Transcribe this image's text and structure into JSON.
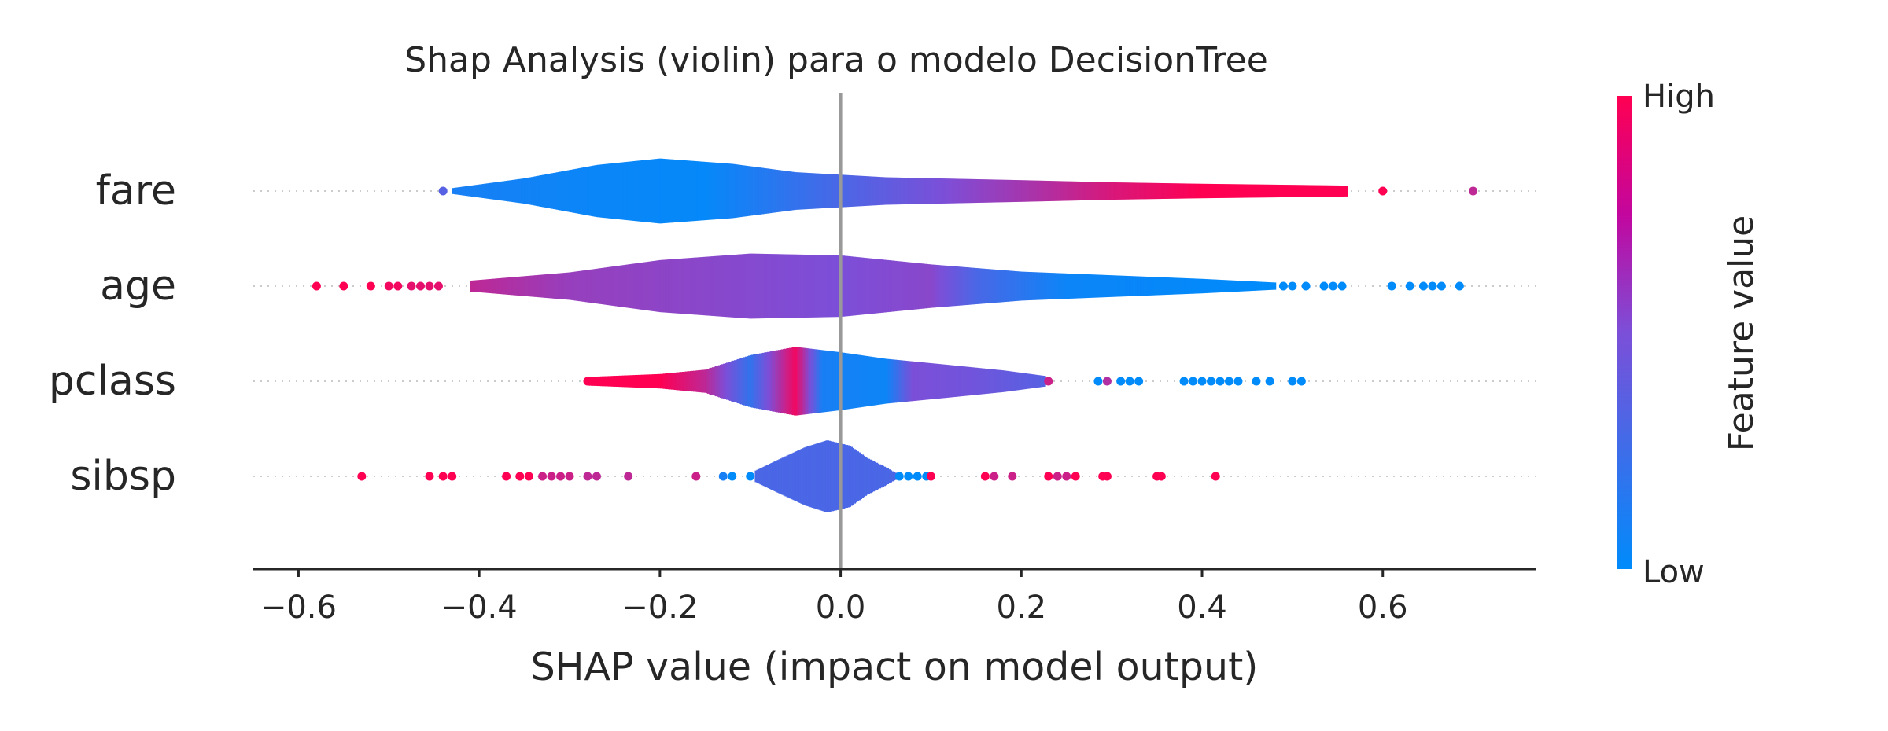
{
  "chart_data": {
    "type": "violin",
    "title": "Shap Analysis (violin) para o modelo DecisionTree",
    "xlabel": "SHAP value (impact on model output)",
    "xlim": [
      -0.65,
      0.77
    ],
    "xticks": [
      -0.6,
      -0.4,
      -0.2,
      0.0,
      0.2,
      0.4,
      0.6
    ],
    "xtick_labels": [
      "−0.6",
      "−0.4",
      "−0.2",
      "0.0",
      "0.2",
      "0.4",
      "0.6"
    ],
    "grid": false,
    "colorbar": {
      "label": "Feature value",
      "high": "High",
      "low": "Low"
    },
    "colors": {
      "low": "#008bfb",
      "mid": "#7c4fd8",
      "high": "#ff0052",
      "zero_line": "#999999",
      "axis": "#262626"
    },
    "features": [
      {
        "name": "fare",
        "range": [
          -0.43,
          0.56
        ],
        "width": [
          [
            -0.43,
            0.08
          ],
          [
            -0.35,
            0.35
          ],
          [
            -0.27,
            0.72
          ],
          [
            -0.2,
            0.9
          ],
          [
            -0.12,
            0.75
          ],
          [
            -0.05,
            0.52
          ],
          [
            0.05,
            0.38
          ],
          [
            0.2,
            0.3
          ],
          [
            0.3,
            0.24
          ],
          [
            0.4,
            0.2
          ],
          [
            0.5,
            0.17
          ],
          [
            0.56,
            0.15
          ]
        ],
        "color": [
          [
            -0.43,
            0.1
          ],
          [
            -0.3,
            0.05
          ],
          [
            -0.15,
            0.02
          ],
          [
            0.0,
            0.3
          ],
          [
            0.2,
            0.65
          ],
          [
            0.3,
            0.85
          ],
          [
            0.4,
            1.0
          ],
          [
            0.56,
            1.0
          ]
        ],
        "outliers": [
          [
            -0.44,
            0.35
          ],
          [
            0.6,
            1.0
          ],
          [
            0.7,
            0.75
          ]
        ]
      },
      {
        "name": "age",
        "range": [
          -0.41,
          0.48
        ],
        "width": [
          [
            -0.41,
            0.15
          ],
          [
            -0.3,
            0.38
          ],
          [
            -0.2,
            0.72
          ],
          [
            -0.1,
            0.9
          ],
          [
            0.0,
            0.85
          ],
          [
            0.1,
            0.6
          ],
          [
            0.2,
            0.4
          ],
          [
            0.3,
            0.3
          ],
          [
            0.4,
            0.2
          ],
          [
            0.48,
            0.1
          ]
        ],
        "color": [
          [
            -0.41,
            0.75
          ],
          [
            -0.3,
            0.6
          ],
          [
            -0.15,
            0.55
          ],
          [
            0.0,
            0.5
          ],
          [
            0.1,
            0.55
          ],
          [
            0.15,
            0.3
          ],
          [
            0.25,
            0.05
          ],
          [
            0.48,
            0.0
          ]
        ],
        "outliers": [
          [
            -0.58,
            1.0
          ],
          [
            -0.55,
            1.0
          ],
          [
            -0.52,
            1.0
          ],
          [
            -0.5,
            0.95
          ],
          [
            -0.49,
            0.95
          ],
          [
            -0.475,
            0.9
          ],
          [
            -0.465,
            0.9
          ],
          [
            -0.455,
            0.9
          ],
          [
            -0.445,
            0.9
          ],
          [
            0.49,
            0.0
          ],
          [
            0.5,
            0.0
          ],
          [
            0.515,
            0.0
          ],
          [
            0.535,
            0.0
          ],
          [
            0.545,
            0.0
          ],
          [
            0.555,
            0.0
          ],
          [
            0.61,
            0.0
          ],
          [
            0.63,
            0.0
          ],
          [
            0.645,
            0.0
          ],
          [
            0.655,
            0.0
          ],
          [
            0.665,
            0.0
          ],
          [
            0.685,
            0.0
          ]
        ]
      },
      {
        "name": "pclass",
        "range": [
          -0.28,
          0.225
        ],
        "width": [
          [
            -0.28,
            0.12
          ],
          [
            -0.2,
            0.2
          ],
          [
            -0.15,
            0.32
          ],
          [
            -0.1,
            0.72
          ],
          [
            -0.05,
            0.95
          ],
          [
            0.0,
            0.8
          ],
          [
            0.05,
            0.62
          ],
          [
            0.12,
            0.45
          ],
          [
            0.18,
            0.3
          ],
          [
            0.225,
            0.15
          ]
        ],
        "color": [
          [
            -0.28,
            1.0
          ],
          [
            -0.2,
            1.0
          ],
          [
            -0.15,
            0.75
          ],
          [
            -0.1,
            0.2
          ],
          [
            -0.05,
            0.95
          ],
          [
            -0.02,
            0.1
          ],
          [
            0.05,
            0.05
          ],
          [
            0.08,
            0.5
          ],
          [
            0.15,
            0.45
          ],
          [
            0.225,
            0.35
          ]
        ],
        "outliers": [
          [
            -0.28,
            1.0
          ],
          [
            -0.275,
            1.0
          ],
          [
            0.23,
            0.8
          ],
          [
            0.285,
            0.0
          ],
          [
            0.295,
            0.7
          ],
          [
            0.31,
            0.0
          ],
          [
            0.32,
            0.0
          ],
          [
            0.33,
            0.0
          ],
          [
            0.38,
            0.0
          ],
          [
            0.39,
            0.0
          ],
          [
            0.4,
            0.0
          ],
          [
            0.41,
            0.0
          ],
          [
            0.42,
            0.0
          ],
          [
            0.43,
            0.0
          ],
          [
            0.44,
            0.0
          ],
          [
            0.46,
            0.0
          ],
          [
            0.475,
            0.0
          ],
          [
            0.5,
            0.0
          ],
          [
            0.51,
            0.0
          ]
        ]
      },
      {
        "name": "sibsp",
        "range": [
          -0.095,
          0.06
        ],
        "width": [
          [
            -0.095,
            0.15
          ],
          [
            -0.07,
            0.45
          ],
          [
            -0.04,
            0.8
          ],
          [
            -0.015,
            1.0
          ],
          [
            0.01,
            0.85
          ],
          [
            0.03,
            0.5
          ],
          [
            0.05,
            0.25
          ],
          [
            0.06,
            0.1
          ]
        ],
        "color": [
          [
            -0.095,
            0.3
          ],
          [
            0.0,
            0.3
          ],
          [
            0.06,
            0.3
          ]
        ],
        "outliers": [
          [
            -0.53,
            1.0
          ],
          [
            -0.455,
            1.0
          ],
          [
            -0.44,
            1.0
          ],
          [
            -0.43,
            1.0
          ],
          [
            -0.37,
            1.0
          ],
          [
            -0.355,
            1.0
          ],
          [
            -0.345,
            1.0
          ],
          [
            -0.33,
            0.8
          ],
          [
            -0.32,
            0.8
          ],
          [
            -0.31,
            0.8
          ],
          [
            -0.3,
            0.8
          ],
          [
            -0.28,
            0.75
          ],
          [
            -0.27,
            0.75
          ],
          [
            -0.235,
            0.75
          ],
          [
            -0.16,
            0.8
          ],
          [
            -0.13,
            0.1
          ],
          [
            -0.12,
            0.0
          ],
          [
            -0.1,
            0.0
          ],
          [
            0.065,
            0.0
          ],
          [
            0.075,
            0.0
          ],
          [
            0.085,
            0.0
          ],
          [
            0.095,
            0.0
          ],
          [
            0.1,
            1.0
          ],
          [
            0.16,
            1.0
          ],
          [
            0.17,
            0.8
          ],
          [
            0.19,
            0.8
          ],
          [
            0.23,
            1.0
          ],
          [
            0.24,
            0.8
          ],
          [
            0.25,
            0.8
          ],
          [
            0.26,
            1.0
          ],
          [
            0.29,
            1.0
          ],
          [
            0.295,
            1.0
          ],
          [
            0.35,
            1.0
          ],
          [
            0.355,
            1.0
          ],
          [
            0.415,
            1.0
          ]
        ]
      }
    ]
  }
}
